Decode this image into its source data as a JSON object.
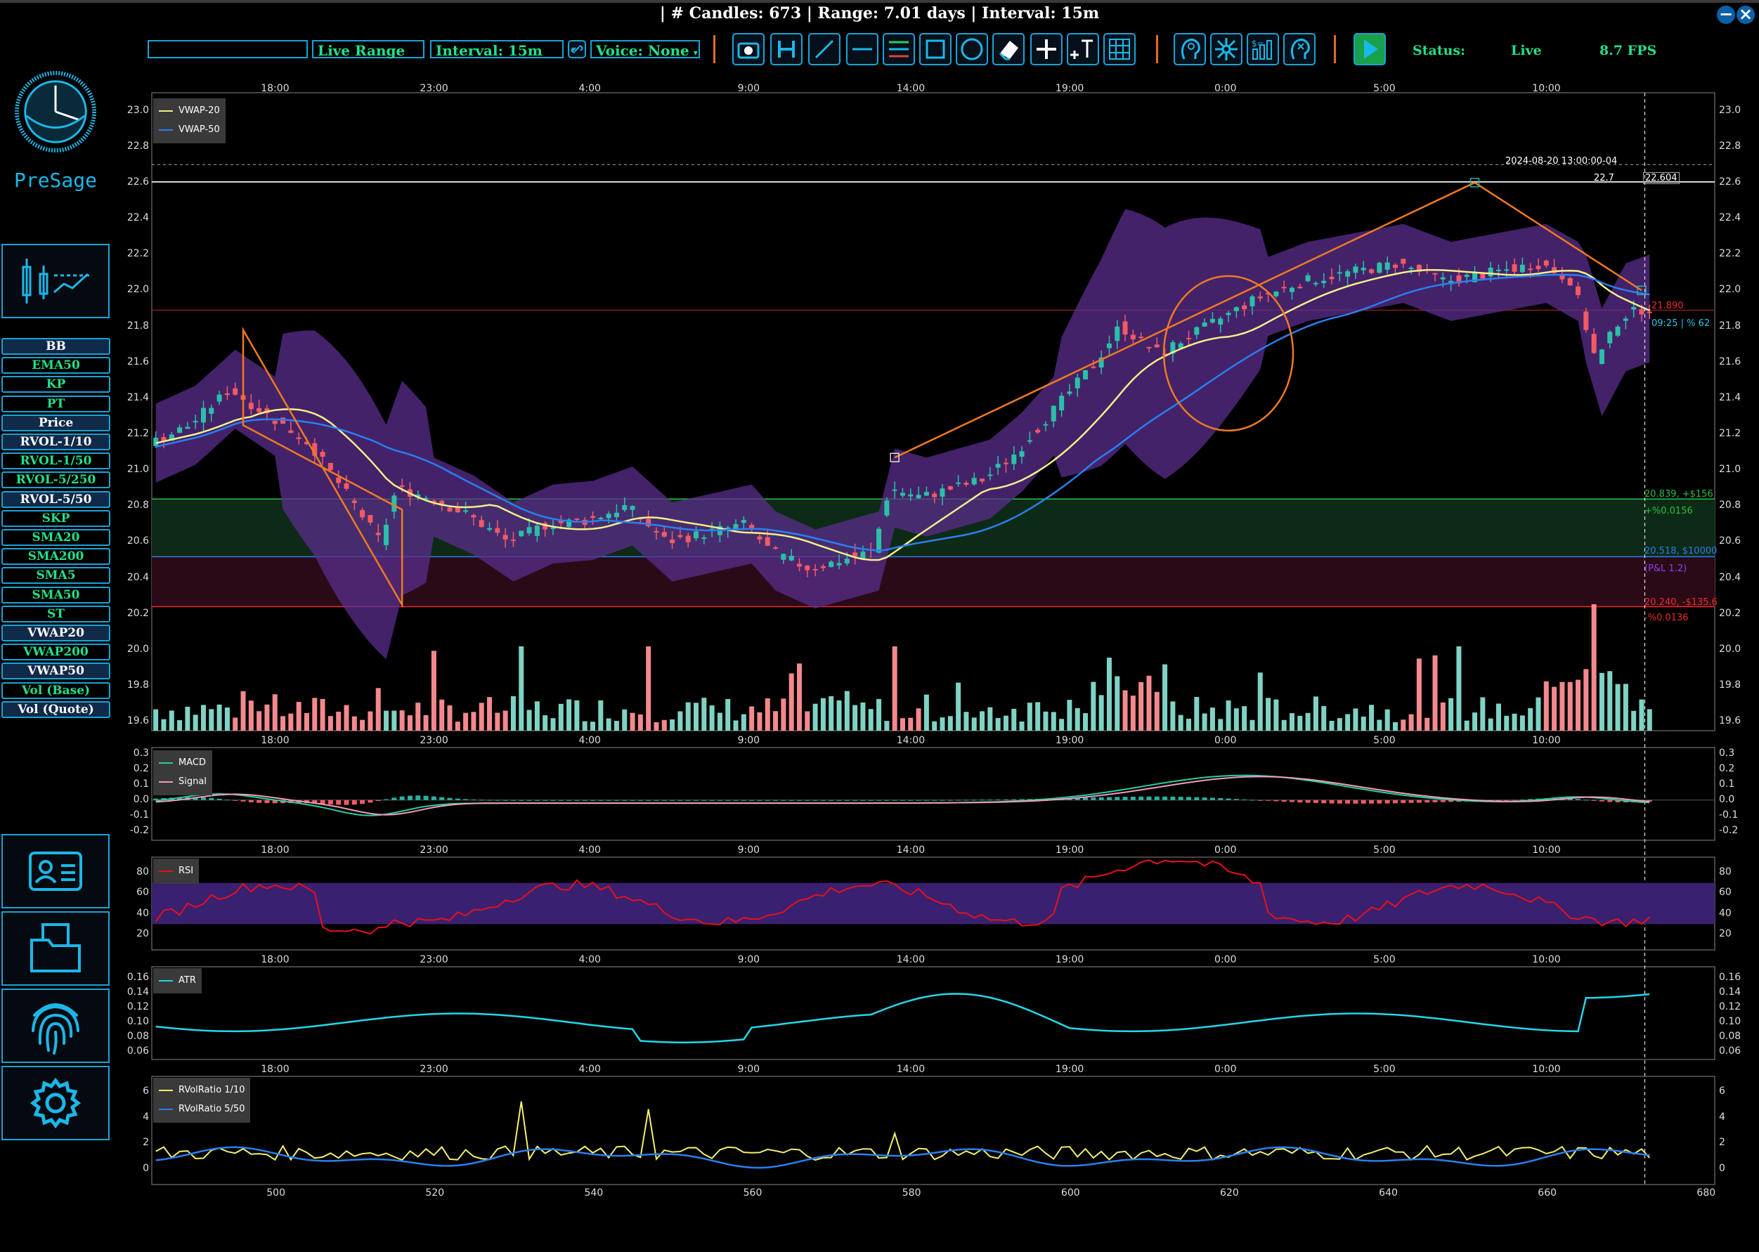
{
  "title": "| # Candles: 673 | Range: 7.01 days | Interval: 15m",
  "toolbar": {
    "search_value": "",
    "range": "Live Range",
    "interval": "Interval: 15m",
    "voice": "Voice: None",
    "status_label": "Status:",
    "status_value": "Live",
    "fps": "8.7 FPS",
    "icons": [
      "camera-icon",
      "h-line-tool-icon",
      "trend-line-icon",
      "horizontal-line-icon",
      "channel-icon",
      "rectangle-icon",
      "circle-icon",
      "eraser-icon",
      "crosshair-icon",
      "text-tool-icon",
      "grid-icon",
      "brain-icon",
      "network-icon",
      "indicators-icon",
      "ai-head-icon",
      "play-icon"
    ]
  },
  "sidebar": {
    "logo_text": "PreSage",
    "indicators": [
      {
        "label": "BB",
        "active": true
      },
      {
        "label": "EMA50",
        "active": false
      },
      {
        "label": "KP",
        "active": false
      },
      {
        "label": "PT",
        "active": false
      },
      {
        "label": "Price",
        "active": true
      },
      {
        "label": "RVOL-1/10",
        "active": true
      },
      {
        "label": "RVOL-1/50",
        "active": false
      },
      {
        "label": "RVOL-5/250",
        "active": false
      },
      {
        "label": "RVOL-5/50",
        "active": true
      },
      {
        "label": "SKP",
        "active": false
      },
      {
        "label": "SMA20",
        "active": false
      },
      {
        "label": "SMA200",
        "active": false
      },
      {
        "label": "SMA5",
        "active": false
      },
      {
        "label": "SMA50",
        "active": false
      },
      {
        "label": "ST",
        "active": false
      },
      {
        "label": "VWAP20",
        "active": true
      },
      {
        "label": "VWAP200",
        "active": false
      },
      {
        "label": "VWAP50",
        "active": true
      },
      {
        "label": "Vol (Base)",
        "active": false
      },
      {
        "label": "Vol (Quote)",
        "active": true
      }
    ]
  },
  "time_ticks": [
    "18:00",
    "23:00",
    "4:00",
    "9:00",
    "14:00",
    "19:00",
    "0:00",
    "5:00",
    "10:00"
  ],
  "index_ticks": [
    "500",
    "520",
    "540",
    "560",
    "580",
    "600",
    "620",
    "640",
    "660",
    "680"
  ],
  "price_panel": {
    "ticks": [
      "23.0",
      "22.8",
      "22.6",
      "22.4",
      "22.2",
      "22.0",
      "21.8",
      "21.6",
      "21.4",
      "21.2",
      "21.0",
      "20.8",
      "20.6",
      "20.4",
      "20.2",
      "20.0",
      "19.8",
      "19.6"
    ],
    "legend": [
      {
        "name": "VWAP-20",
        "color": "#f4f08a"
      },
      {
        "name": "VWAP-50",
        "color": "#2a7ff0"
      }
    ],
    "date_label": "2024-08-20 13:00:00-04",
    "level_22_7": "22.7",
    "crosshair_price": "22.604",
    "current_price": "21.890",
    "time_pct": "09:25 | % 62",
    "target": "20.839, +$156",
    "target_pct": "+%0.0156",
    "entry": "20.518, $10000",
    "pnl": "(P&L 1.2)",
    "stop": "20.240, -$135.6",
    "stop_pct": "-%0.0136"
  },
  "macd_panel": {
    "ticks": [
      "0.3",
      "0.2",
      "0.1",
      "0.0",
      "-0.1",
      "-0.2"
    ],
    "legend": [
      {
        "name": "MACD",
        "color": "#26d0a0"
      },
      {
        "name": "Signal",
        "color": "#f29bc0"
      }
    ]
  },
  "rsi_panel": {
    "ticks": [
      "80",
      "60",
      "40",
      "20"
    ],
    "legend": [
      {
        "name": "RSI",
        "color": "#e8101a"
      }
    ]
  },
  "atr_panel": {
    "ticks": [
      "0.16",
      "0.14",
      "0.12",
      "0.10",
      "0.08",
      "0.06"
    ],
    "legend": [
      {
        "name": "ATR",
        "color": "#22d8e8"
      }
    ]
  },
  "rvol_panel": {
    "ticks": [
      "6",
      "4",
      "2",
      "0"
    ],
    "legend": [
      {
        "name": "RVolRatio 1/10",
        "color": "#f4f06a"
      },
      {
        "name": "RVolRatio 5/50",
        "color": "#2a7ff0"
      }
    ]
  },
  "colors": {
    "accent": "#1aa3d6",
    "text_green": "#22e08a",
    "up": "#7fd3c4",
    "down": "#f4898c",
    "bb_fill": "#5a2d8c"
  }
}
